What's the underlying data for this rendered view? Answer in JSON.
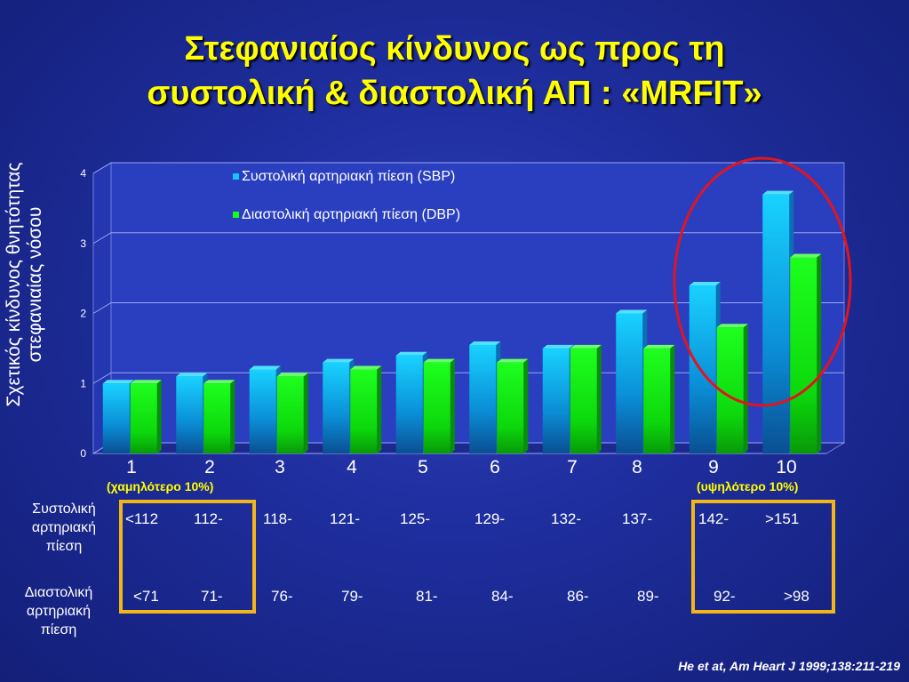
{
  "title_line1": "Στεφανιαίος κίνδυνος ως προς τη",
  "title_line2": "συστολική & διαστολική ΑΠ : «MRFIT»",
  "colors": {
    "sbp": "#14c8ff",
    "dbp": "#14ff14",
    "highlight": "#e2141e",
    "box": "#f2b61a",
    "title": "#ffff00"
  },
  "chart_data": {
    "type": "bar",
    "categories": [
      "1",
      "2",
      "3",
      "4",
      "5",
      "6",
      "7",
      "8",
      "9",
      "10"
    ],
    "series": [
      {
        "name": "Συστολική αρτηριακή πίεση (SBP)",
        "values": [
          1.0,
          1.1,
          1.2,
          1.3,
          1.4,
          1.55,
          1.5,
          2.0,
          2.4,
          3.7
        ]
      },
      {
        "name": "Διαστολική αρτηριακή πίεση (DBP)",
        "values": [
          1.0,
          1.0,
          1.1,
          1.2,
          1.3,
          1.3,
          1.5,
          1.5,
          1.8,
          2.8
        ]
      }
    ],
    "ylabel": "Σχετικός κίνδυνος θνητότητας στεφανιαίας νόσου",
    "ylim": [
      0,
      4
    ],
    "yticks": [
      "0",
      "1",
      "2",
      "3",
      "4"
    ],
    "grid": true,
    "legend_position": "top"
  },
  "ylabel_line1": "Σχετικός κίνδυνος θνητότητας",
  "ylabel_line2": "στεφανιαίας νόσου",
  "low_note": "(χαμηλότερο 10%)",
  "high_note": "(υψηλότερο 10%)",
  "sbp_row_label": [
    "Συστολική",
    "αρτηριακή",
    "πίεση"
  ],
  "dbp_row_label": [
    "Διαστολική",
    "αρτηριακή",
    "πίεση"
  ],
  "sbp_ranges": [
    "<112",
    "112-",
    "118-",
    "121-",
    "125-",
    "129-",
    "132-",
    "137-",
    "142-",
    ">151"
  ],
  "dbp_ranges": [
    "<71",
    "71-",
    "76-",
    "79-",
    "81-",
    "84-",
    "86-",
    "89-",
    "92-",
    ">98"
  ],
  "citation": "He et at, Am Heart J 1999;138:211-219"
}
